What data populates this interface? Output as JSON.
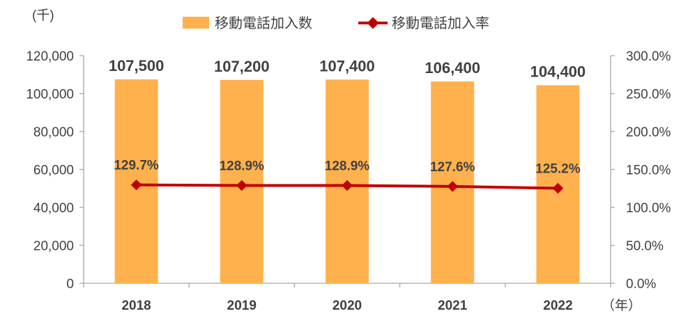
{
  "chart_data": {
    "type": "bar",
    "categories": [
      "2018",
      "2019",
      "2020",
      "2021",
      "2022"
    ],
    "series": [
      {
        "name": "移動電話加入数",
        "type": "bar",
        "axis": "left",
        "values": [
          107500,
          107200,
          107400,
          106400,
          104400
        ],
        "labels": [
          "107,500",
          "107,200",
          "107,400",
          "106,400",
          "104,400"
        ]
      },
      {
        "name": "移動電話加入率",
        "type": "line",
        "axis": "right",
        "values": [
          129.7,
          128.9,
          128.9,
          127.6,
          125.2
        ],
        "labels": [
          "129.7%",
          "128.9%",
          "128.9%",
          "127.6%",
          "125.2%"
        ]
      }
    ],
    "y_left": {
      "unit": "(千)",
      "ylim": [
        0,
        120000
      ],
      "ticks": [
        0,
        20000,
        40000,
        60000,
        80000,
        100000,
        120000
      ],
      "tick_labels": [
        "0",
        "20,000",
        "40,000",
        "60,000",
        "80,000",
        "100,000",
        "120,000"
      ]
    },
    "y_right": {
      "ylim": [
        0,
        300
      ],
      "tick_labels": [
        "0.0%",
        "50.0%",
        "100.0%",
        "150.0%",
        "200.0%",
        "250.0%",
        "300.0%"
      ]
    },
    "x_unit": "（年）",
    "legend_position": "top-center",
    "grid": false,
    "colors": {
      "bar": "#FFB14E",
      "line": "#C00000",
      "axis": "#A6A6A6",
      "text": "#404040"
    }
  }
}
